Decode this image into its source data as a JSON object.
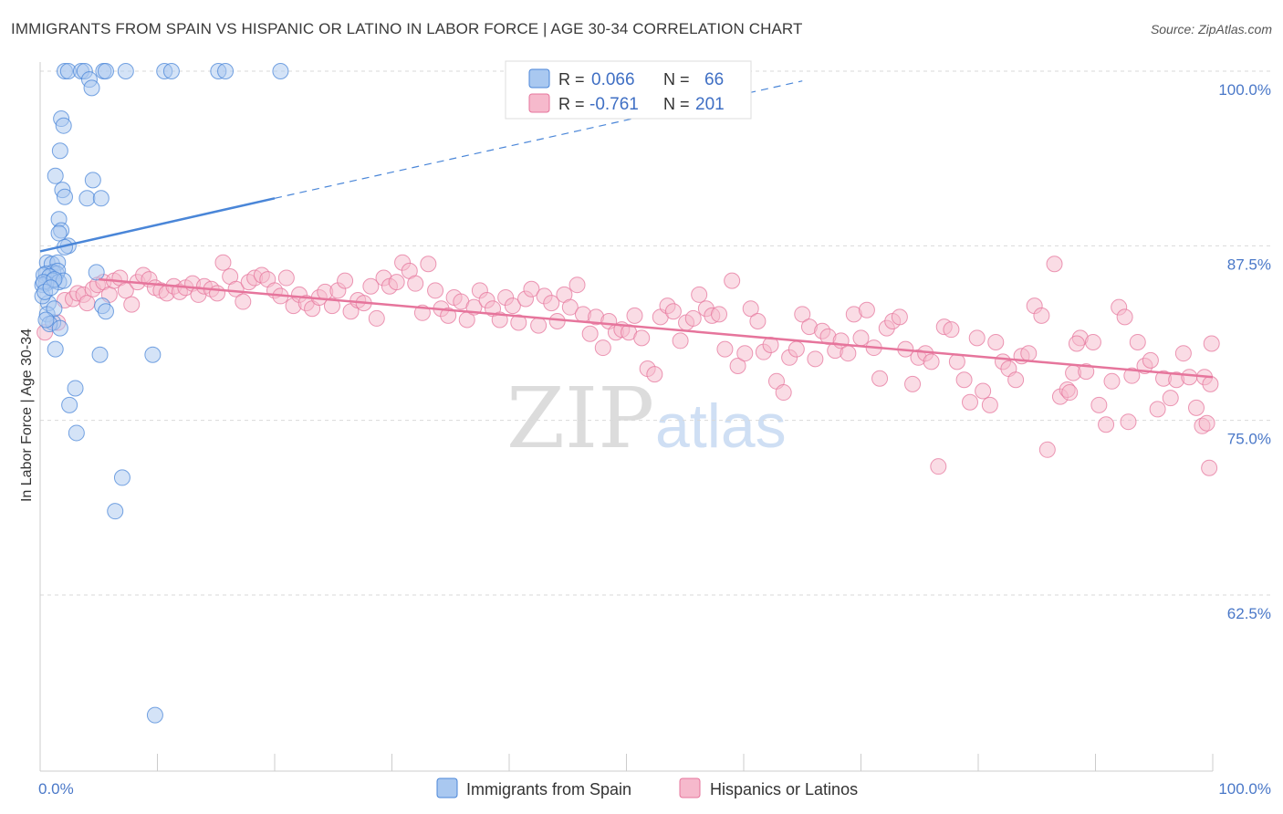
{
  "title": "IMMIGRANTS FROM SPAIN VS HISPANIC OR LATINO IN LABOR FORCE | AGE 30-34 CORRELATION CHART",
  "source": "Source: ZipAtlas.com",
  "watermark": {
    "zip": "ZIP",
    "atlas": "atlas"
  },
  "colors": {
    "blue": "#4a86d8",
    "blue_fill": "#a9c8f0",
    "pink": "#e6759c",
    "pink_fill": "#f6b9cc",
    "tick_text": "#4a78c8"
  },
  "legend": {
    "r_label": "R =",
    "n_label": "N =",
    "rows": [
      {
        "r": "0.066",
        "n": "66"
      },
      {
        "r": "-0.761",
        "n": "201"
      }
    ]
  },
  "chart_data": {
    "type": "scatter",
    "xlabel": "",
    "ylabel": "In Labor Force | Age 30-34",
    "x_tick_labels": [
      "0.0%",
      "100.0%"
    ],
    "y_tick_labels": [
      "100.0%",
      "87.5%",
      "75.0%",
      "62.5%"
    ],
    "y_ticks": [
      100,
      87.5,
      75,
      62.5
    ],
    "xlim": [
      0,
      100
    ],
    "ylim": [
      52,
      101
    ],
    "grid": true,
    "legend_position": "top-center",
    "series": [
      {
        "name": "Immigrants from Spain",
        "R": 0.066,
        "N": 66,
        "trend": {
          "x": [
            0,
            20
          ],
          "y": [
            87.1,
            90.9
          ],
          "dash_to_x": 65,
          "dash_to_y": 99.3
        },
        "points": [
          [
            2.1,
            100
          ],
          [
            2.4,
            100
          ],
          [
            3.5,
            100
          ],
          [
            3.8,
            100
          ],
          [
            5.4,
            100
          ],
          [
            5.6,
            100
          ],
          [
            7.3,
            100
          ],
          [
            10.6,
            100
          ],
          [
            11.2,
            100
          ],
          [
            15.2,
            100
          ],
          [
            15.8,
            100
          ],
          [
            20.5,
            100
          ],
          [
            4.2,
            99.4
          ],
          [
            4.4,
            98.8
          ],
          [
            1.8,
            96.6
          ],
          [
            2.0,
            96.1
          ],
          [
            1.7,
            94.3
          ],
          [
            1.3,
            92.5
          ],
          [
            4.5,
            92.2
          ],
          [
            1.9,
            91.5
          ],
          [
            2.1,
            91.0
          ],
          [
            4.0,
            90.9
          ],
          [
            5.2,
            90.9
          ],
          [
            1.6,
            89.4
          ],
          [
            1.8,
            88.6
          ],
          [
            1.6,
            88.4
          ],
          [
            2.4,
            87.5
          ],
          [
            2.1,
            87.4
          ],
          [
            0.6,
            86.3
          ],
          [
            1.0,
            86.2
          ],
          [
            1.5,
            86.3
          ],
          [
            1.1,
            85.6
          ],
          [
            1.4,
            85.5
          ],
          [
            1.5,
            85.7
          ],
          [
            0.5,
            85.5
          ],
          [
            0.3,
            85.4
          ],
          [
            0.8,
            85.3
          ],
          [
            4.8,
            85.6
          ],
          [
            1.1,
            85.0
          ],
          [
            1.6,
            84.9
          ],
          [
            0.5,
            84.8
          ],
          [
            0.2,
            84.7
          ],
          [
            2.0,
            85.0
          ],
          [
            0.3,
            84.9
          ],
          [
            1.2,
            85.1
          ],
          [
            0.7,
            83.4
          ],
          [
            0.2,
            83.9
          ],
          [
            0.6,
            82.6
          ],
          [
            1.1,
            82.0
          ],
          [
            0.8,
            81.9
          ],
          [
            1.7,
            81.6
          ],
          [
            5.3,
            83.2
          ],
          [
            5.6,
            82.8
          ],
          [
            1.3,
            80.1
          ],
          [
            5.1,
            79.7
          ],
          [
            9.6,
            79.7
          ],
          [
            3.0,
            77.3
          ],
          [
            2.5,
            76.1
          ],
          [
            3.1,
            74.1
          ],
          [
            7.0,
            70.9
          ],
          [
            6.4,
            68.5
          ],
          [
            9.8,
            53.9
          ],
          [
            0.4,
            84.2
          ],
          [
            0.9,
            84.5
          ],
          [
            1.2,
            83.0
          ],
          [
            0.5,
            82.2
          ]
        ]
      },
      {
        "name": "Hispanics or Latinos",
        "R": -0.761,
        "N": 201,
        "trend": {
          "x": [
            5,
            100
          ],
          "y": [
            85.1,
            78.1
          ]
        },
        "points": [
          [
            0.4,
            81.3
          ],
          [
            1.5,
            82.0
          ],
          [
            2.1,
            83.6
          ],
          [
            2.8,
            83.7
          ],
          [
            3.2,
            84.1
          ],
          [
            3.7,
            84.0
          ],
          [
            4.0,
            83.4
          ],
          [
            4.5,
            84.4
          ],
          [
            4.9,
            84.7
          ],
          [
            5.4,
            84.9
          ],
          [
            5.9,
            84.0
          ],
          [
            6.3,
            85.0
          ],
          [
            6.8,
            85.2
          ],
          [
            7.3,
            84.3
          ],
          [
            7.8,
            83.3
          ],
          [
            8.3,
            84.9
          ],
          [
            8.8,
            85.4
          ],
          [
            9.3,
            85.1
          ],
          [
            9.8,
            84.5
          ],
          [
            10.3,
            84.3
          ],
          [
            10.8,
            84.1
          ],
          [
            11.4,
            84.6
          ],
          [
            11.9,
            84.2
          ],
          [
            12.4,
            84.5
          ],
          [
            13.0,
            84.8
          ],
          [
            13.5,
            84.0
          ],
          [
            14.0,
            84.6
          ],
          [
            14.6,
            84.4
          ],
          [
            15.1,
            84.1
          ],
          [
            15.6,
            86.3
          ],
          [
            16.2,
            85.3
          ],
          [
            16.7,
            84.4
          ],
          [
            17.3,
            83.5
          ],
          [
            17.8,
            84.9
          ],
          [
            18.3,
            85.2
          ],
          [
            18.9,
            85.4
          ],
          [
            19.4,
            85.1
          ],
          [
            20.0,
            84.3
          ],
          [
            20.5,
            83.9
          ],
          [
            21.0,
            85.2
          ],
          [
            21.6,
            83.2
          ],
          [
            22.1,
            84.0
          ],
          [
            22.7,
            83.4
          ],
          [
            23.2,
            83.0
          ],
          [
            23.8,
            83.8
          ],
          [
            24.3,
            84.2
          ],
          [
            24.9,
            83.2
          ],
          [
            25.4,
            84.3
          ],
          [
            26.0,
            85.0
          ],
          [
            26.5,
            82.8
          ],
          [
            27.1,
            83.6
          ],
          [
            27.6,
            83.4
          ],
          [
            28.2,
            84.6
          ],
          [
            28.7,
            82.3
          ],
          [
            29.3,
            85.2
          ],
          [
            29.8,
            84.6
          ],
          [
            30.4,
            84.9
          ],
          [
            30.9,
            86.3
          ],
          [
            31.5,
            85.7
          ],
          [
            32.0,
            84.8
          ],
          [
            32.6,
            82.7
          ],
          [
            33.1,
            86.2
          ],
          [
            33.7,
            84.3
          ],
          [
            34.2,
            83.0
          ],
          [
            34.8,
            82.5
          ],
          [
            35.3,
            83.8
          ],
          [
            35.9,
            83.5
          ],
          [
            36.4,
            82.2
          ],
          [
            37.0,
            83.1
          ],
          [
            37.5,
            84.3
          ],
          [
            38.1,
            83.6
          ],
          [
            38.6,
            83.0
          ],
          [
            39.2,
            82.2
          ],
          [
            39.7,
            83.8
          ],
          [
            40.3,
            83.2
          ],
          [
            40.8,
            82.0
          ],
          [
            41.4,
            83.7
          ],
          [
            41.9,
            84.4
          ],
          [
            42.5,
            81.8
          ],
          [
            43.0,
            83.9
          ],
          [
            43.6,
            83.4
          ],
          [
            44.1,
            82.1
          ],
          [
            44.7,
            84.0
          ],
          [
            45.2,
            83.1
          ],
          [
            45.8,
            84.7
          ],
          [
            46.3,
            82.6
          ],
          [
            46.9,
            81.2
          ],
          [
            47.4,
            82.4
          ],
          [
            48.0,
            80.2
          ],
          [
            48.5,
            82.1
          ],
          [
            49.1,
            81.3
          ],
          [
            49.6,
            81.5
          ],
          [
            50.2,
            81.3
          ],
          [
            50.7,
            82.5
          ],
          [
            51.3,
            80.9
          ],
          [
            51.8,
            78.7
          ],
          [
            52.4,
            78.3
          ],
          [
            52.9,
            82.4
          ],
          [
            53.5,
            83.2
          ],
          [
            54.0,
            82.8
          ],
          [
            54.6,
            80.7
          ],
          [
            55.1,
            82.0
          ],
          [
            55.7,
            82.3
          ],
          [
            56.2,
            84.0
          ],
          [
            56.8,
            83.0
          ],
          [
            57.3,
            82.5
          ],
          [
            57.9,
            82.6
          ],
          [
            58.4,
            80.1
          ],
          [
            59.0,
            85.0
          ],
          [
            59.5,
            78.9
          ],
          [
            60.1,
            79.8
          ],
          [
            60.6,
            83.0
          ],
          [
            61.2,
            82.1
          ],
          [
            61.7,
            79.9
          ],
          [
            62.3,
            80.4
          ],
          [
            62.8,
            77.8
          ],
          [
            63.4,
            77.0
          ],
          [
            63.9,
            79.5
          ],
          [
            64.5,
            80.1
          ],
          [
            65.0,
            82.6
          ],
          [
            65.6,
            81.7
          ],
          [
            66.1,
            79.4
          ],
          [
            66.7,
            81.4
          ],
          [
            67.2,
            81.0
          ],
          [
            67.8,
            80.0
          ],
          [
            68.3,
            80.7
          ],
          [
            68.9,
            79.8
          ],
          [
            69.4,
            82.6
          ],
          [
            70.0,
            80.9
          ],
          [
            70.5,
            82.9
          ],
          [
            71.1,
            80.2
          ],
          [
            71.6,
            78.0
          ],
          [
            72.2,
            81.6
          ],
          [
            72.7,
            82.1
          ],
          [
            73.3,
            82.4
          ],
          [
            73.8,
            80.1
          ],
          [
            74.4,
            77.6
          ],
          [
            74.9,
            79.5
          ],
          [
            75.5,
            79.8
          ],
          [
            76.0,
            79.2
          ],
          [
            76.6,
            71.7
          ],
          [
            77.1,
            81.7
          ],
          [
            77.7,
            81.5
          ],
          [
            78.2,
            79.2
          ],
          [
            78.8,
            77.9
          ],
          [
            79.3,
            76.3
          ],
          [
            79.9,
            80.9
          ],
          [
            80.4,
            77.1
          ],
          [
            81.0,
            76.1
          ],
          [
            81.5,
            80.6
          ],
          [
            82.1,
            79.2
          ],
          [
            82.6,
            78.7
          ],
          [
            83.2,
            77.9
          ],
          [
            83.7,
            79.6
          ],
          [
            84.3,
            79.8
          ],
          [
            84.8,
            83.2
          ],
          [
            85.4,
            82.5
          ],
          [
            85.9,
            72.9
          ],
          [
            86.5,
            86.2
          ],
          [
            87.0,
            76.7
          ],
          [
            87.6,
            77.2
          ],
          [
            88.1,
            78.4
          ],
          [
            88.7,
            80.9
          ],
          [
            89.2,
            78.5
          ],
          [
            89.8,
            80.6
          ],
          [
            90.3,
            76.1
          ],
          [
            90.9,
            74.7
          ],
          [
            91.4,
            77.8
          ],
          [
            92.0,
            83.1
          ],
          [
            92.5,
            82.4
          ],
          [
            93.1,
            78.2
          ],
          [
            93.6,
            80.6
          ],
          [
            94.2,
            78.9
          ],
          [
            94.7,
            79.3
          ],
          [
            95.3,
            75.8
          ],
          [
            95.8,
            78.0
          ],
          [
            96.4,
            76.6
          ],
          [
            96.9,
            77.9
          ],
          [
            97.5,
            79.8
          ],
          [
            98.0,
            78.1
          ],
          [
            98.6,
            75.9
          ],
          [
            99.1,
            74.6
          ],
          [
            99.7,
            71.6
          ],
          [
            99.9,
            80.5
          ],
          [
            99.3,
            78.1
          ],
          [
            99.8,
            77.6
          ],
          [
            99.5,
            74.8
          ],
          [
            92.8,
            74.9
          ],
          [
            88.4,
            80.5
          ],
          [
            87.8,
            77.0
          ]
        ]
      }
    ]
  }
}
